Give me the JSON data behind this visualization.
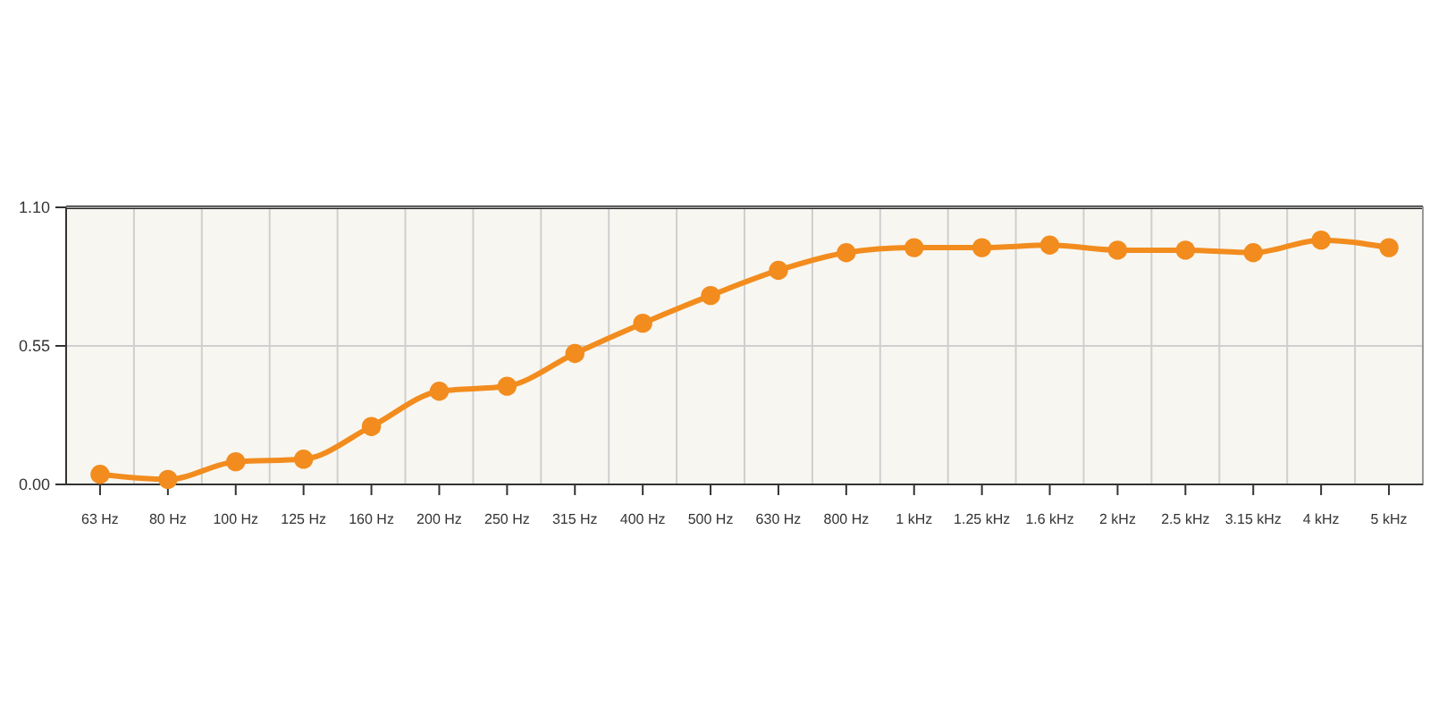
{
  "chart_data": {
    "type": "line",
    "categories": [
      "63 Hz",
      "80 Hz",
      "100 Hz",
      "125 Hz",
      "160 Hz",
      "200 Hz",
      "250 Hz",
      "315 Hz",
      "400 Hz",
      "500 Hz",
      "630 Hz",
      "800 Hz",
      "1 kHz",
      "1.25 kHz",
      "1.6 kHz",
      "2 kHz",
      "2.5 kHz",
      "3.15 kHz",
      "4 kHz",
      "5 kHz"
    ],
    "series": [
      {
        "color": "#f28c1e",
        "values": [
          0.04,
          0.02,
          0.09,
          0.1,
          0.23,
          0.37,
          0.39,
          0.52,
          0.64,
          0.75,
          0.85,
          0.92,
          0.94,
          0.94,
          0.95,
          0.93,
          0.93,
          0.92,
          0.97,
          0.94
        ]
      }
    ],
    "ylim": [
      0,
      1.1
    ],
    "yticks": [
      {
        "value": 0,
        "label": "0.00"
      },
      {
        "value": 0.55,
        "label": "0.55"
      },
      {
        "value": 1.1,
        "label": "1.10"
      }
    ],
    "grid": true,
    "marker": "circle",
    "line_style": "solid"
  }
}
